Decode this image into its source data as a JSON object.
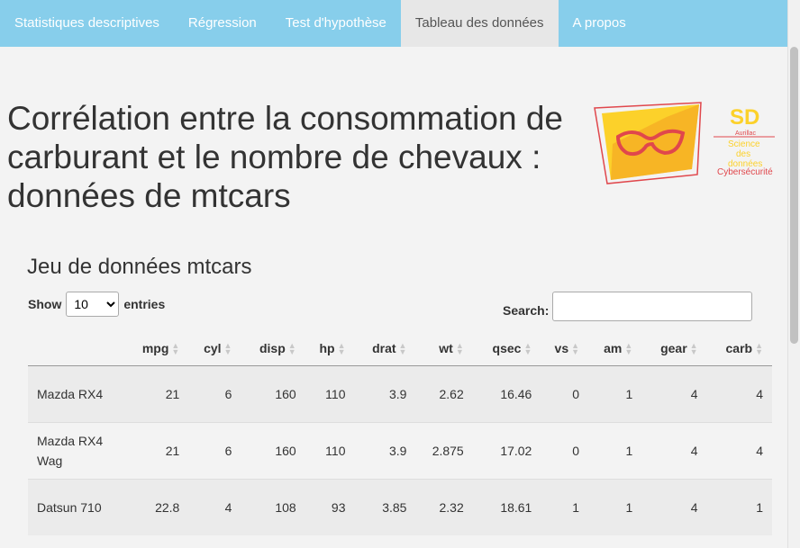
{
  "nav": {
    "items": [
      {
        "label": "Statistiques descriptives"
      },
      {
        "label": "Régression"
      },
      {
        "label": "Test d'hypothèse"
      },
      {
        "label": "Tableau des données"
      },
      {
        "label": "A propos"
      }
    ],
    "active": 3
  },
  "page": {
    "title": "Corrélation entre la consommation de carburant et le nombre de chevaux : données de mtcars"
  },
  "logo": {
    "sd": "SD",
    "city": "Aurillac",
    "line1": "Science",
    "line2": "des",
    "line3": "données",
    "line4": "Cybersécurité"
  },
  "section": {
    "title": "Jeu de données mtcars"
  },
  "controls": {
    "show_label": "Show",
    "entries_value": "10",
    "entries_label": "entries",
    "search_label": "Search:",
    "search_value": ""
  },
  "table": {
    "columns": [
      "",
      "mpg",
      "cyl",
      "disp",
      "hp",
      "drat",
      "wt",
      "qsec",
      "vs",
      "am",
      "gear",
      "carb"
    ],
    "rows": [
      {
        "name": "Mazda RX4",
        "values": [
          "21",
          "6",
          "160",
          "110",
          "3.9",
          "2.62",
          "16.46",
          "0",
          "1",
          "4",
          "4"
        ]
      },
      {
        "name": "Mazda RX4 Wag",
        "values": [
          "21",
          "6",
          "160",
          "110",
          "3.9",
          "2.875",
          "17.02",
          "0",
          "1",
          "4",
          "4"
        ]
      },
      {
        "name": "Datsun 710",
        "values": [
          "22.8",
          "4",
          "108",
          "93",
          "3.85",
          "2.32",
          "18.61",
          "1",
          "1",
          "4",
          "1"
        ]
      }
    ]
  }
}
